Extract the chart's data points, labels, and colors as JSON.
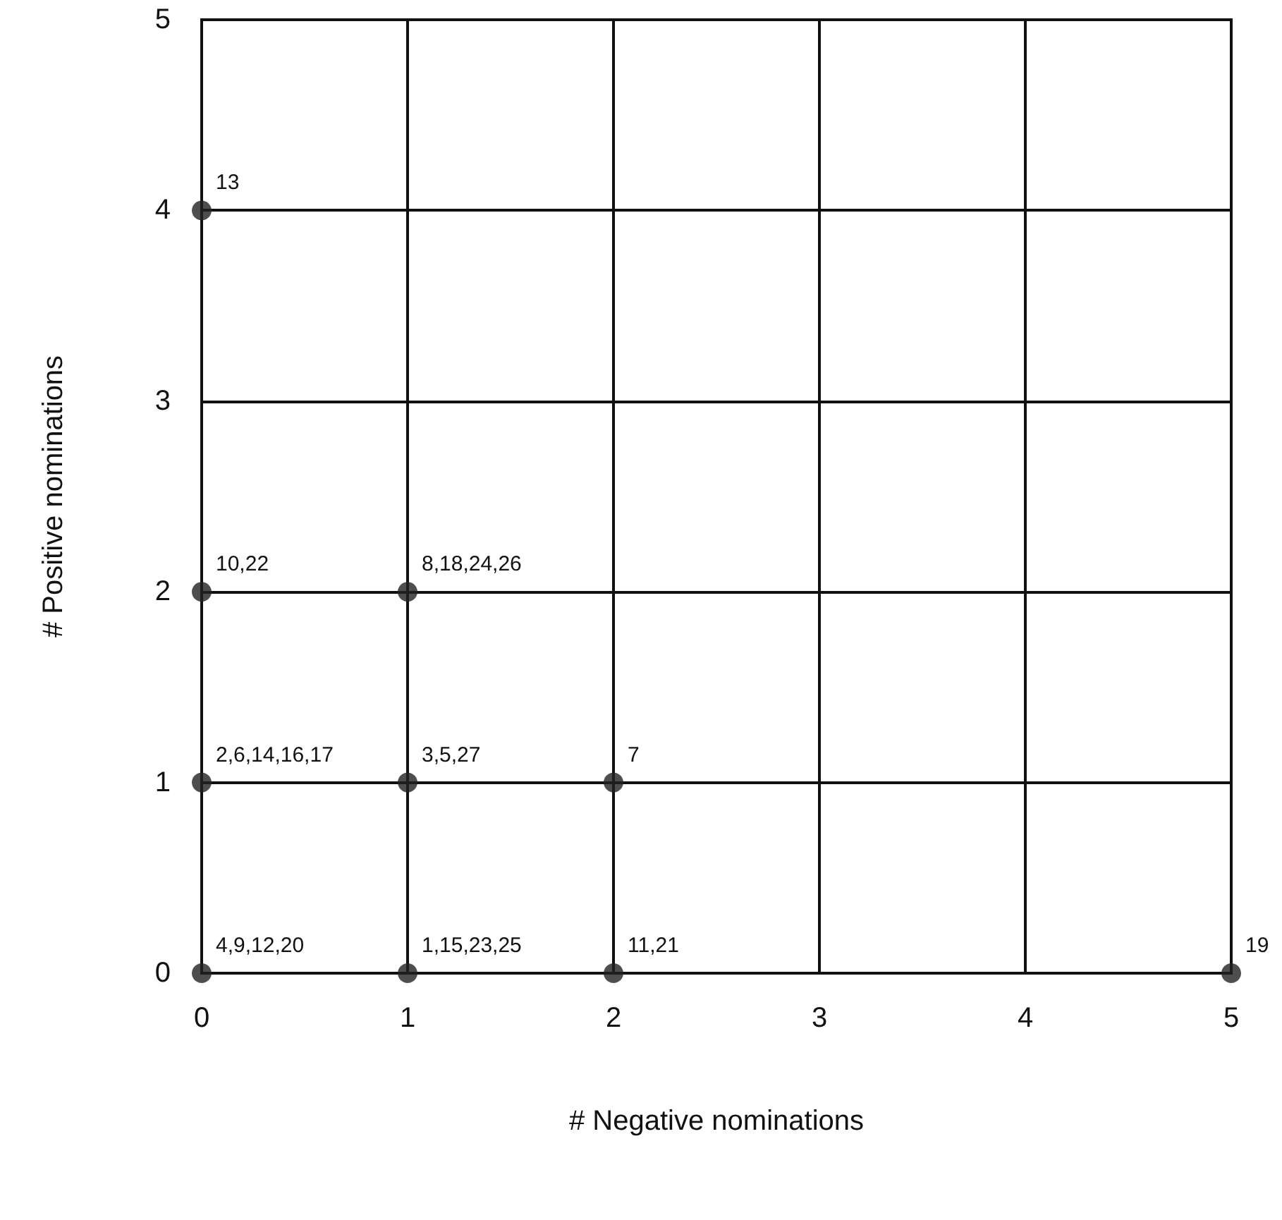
{
  "chart_data": {
    "type": "scatter",
    "xlabel": "# Negative nominations",
    "ylabel": "# Positive nominations",
    "x": [
      0,
      0,
      1,
      0,
      1,
      2,
      0,
      1,
      2,
      5
    ],
    "series": [
      {
        "color": "#222222",
        "values": [
          4,
          2,
          2,
          1,
          1,
          1,
          0,
          0,
          0,
          0
        ]
      }
    ],
    "annotations": [
      {
        "text": "13",
        "x": 0,
        "y": 4
      },
      {
        "text": "10,22",
        "x": 0,
        "y": 2
      },
      {
        "text": "8,18,24,26",
        "x": 1,
        "y": 2
      },
      {
        "text": "2,6,14,16,17",
        "x": 0,
        "y": 1
      },
      {
        "text": "3,5,27",
        "x": 1,
        "y": 1
      },
      {
        "text": "7",
        "x": 2,
        "y": 1
      },
      {
        "text": "4,9,12,20",
        "x": 0,
        "y": 0
      },
      {
        "text": "1,15,23,25",
        "x": 1,
        "y": 0
      },
      {
        "text": "11,21",
        "x": 2,
        "y": 0
      },
      {
        "text": "19",
        "x": 5,
        "y": 0
      }
    ],
    "xlim": [
      0,
      5
    ],
    "ylim": [
      0,
      5
    ],
    "xticks": [
      0,
      1,
      2,
      3,
      4,
      5
    ],
    "yticks": [
      0,
      1,
      2,
      3,
      4,
      5
    ],
    "grid": true,
    "marker": "circle"
  }
}
